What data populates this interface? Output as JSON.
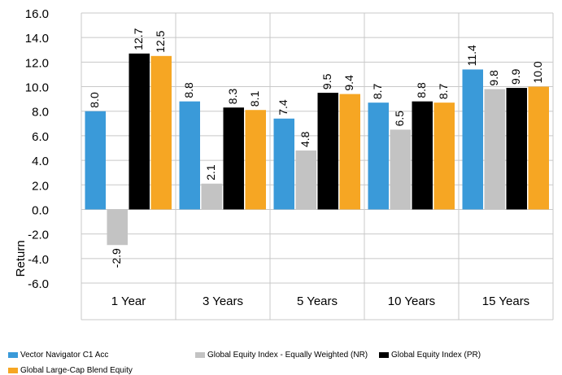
{
  "chart_data": {
    "type": "bar",
    "categories": [
      "1 Year",
      "3 Years",
      "5 Years",
      "10 Years",
      "15 Years"
    ],
    "series": [
      {
        "name": "Vector Navigator C1 Acc",
        "color": "#3a9ad9",
        "values": [
          8.0,
          8.8,
          7.4,
          8.7,
          11.4
        ]
      },
      {
        "name": "Global Equity Index - Equally Weighted (NR)",
        "color": "#c3c3c3",
        "values": [
          -2.9,
          2.1,
          4.8,
          6.5,
          9.8
        ]
      },
      {
        "name": "Global Equity Index (PR)",
        "color": "#000000",
        "values": [
          12.7,
          8.3,
          9.5,
          8.8,
          9.9
        ]
      },
      {
        "name": "Global Large-Cap Blend Equity",
        "color": "#f6a623",
        "values": [
          12.5,
          8.1,
          9.4,
          8.7,
          10.0
        ]
      }
    ],
    "data_labels": [
      [
        "8.0",
        "8.8",
        "7.4",
        "8.7",
        "11.4"
      ],
      [
        "-2.9",
        "2.1",
        "4.8",
        "6.5",
        "9.8"
      ],
      [
        "12.7",
        "8.3",
        "9.5",
        "8.8",
        "9.9"
      ],
      [
        "12.5",
        "8.1",
        "9.4",
        "8.7",
        "10.0"
      ]
    ],
    "ylabel": "Return",
    "xlabel": "",
    "ylim": [
      -6.0,
      16.0
    ],
    "yticks": [
      "16.0",
      "14.0",
      "12.0",
      "10.0",
      "8.0",
      "6.0",
      "4.0",
      "2.0",
      "0.0",
      "-2.0",
      "-4.0",
      "-6.0"
    ],
    "grid": true,
    "legend_position": "bottom"
  }
}
